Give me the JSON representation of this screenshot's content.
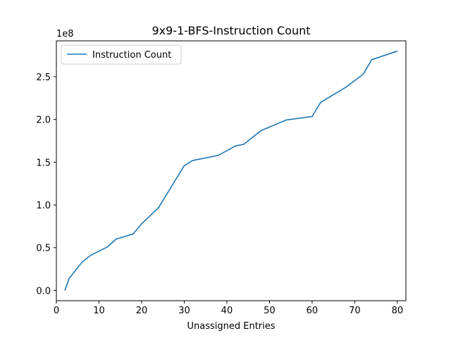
{
  "chart_data": {
    "type": "line",
    "title": "9x9-1-BFS-Instruction Count",
    "xlabel": "Unassigned Entries",
    "ylabel": "",
    "y_offset_label": "1e8",
    "xlim": [
      0,
      82
    ],
    "ylim": [
      -12000000,
      292000000
    ],
    "x_ticks": [
      0,
      10,
      20,
      30,
      40,
      50,
      60,
      70,
      80
    ],
    "y_ticks": [
      0,
      50000000,
      100000000,
      150000000,
      200000000,
      250000000
    ],
    "y_tick_labels": [
      "0.0",
      "0.5",
      "1.0",
      "1.5",
      "2.0",
      "2.5"
    ],
    "grid": false,
    "legend_position": "upper-left",
    "series": [
      {
        "name": "Instruction Count",
        "color": "#1f77b4",
        "x": [
          2,
          3,
          6,
          8,
          12,
          14,
          18,
          20,
          24,
          30,
          32,
          38,
          42,
          44,
          48,
          54,
          60,
          62,
          68,
          72,
          74,
          80
        ],
        "y": [
          0,
          14000000,
          33000000,
          41000000,
          51000000,
          60000000,
          66000000,
          78000000,
          97000000,
          146000000,
          152000000,
          158000000,
          169000000,
          171000000,
          187000000,
          199500000,
          203500000,
          220000000,
          238000000,
          253000000,
          270000000,
          280000000
        ]
      }
    ]
  }
}
